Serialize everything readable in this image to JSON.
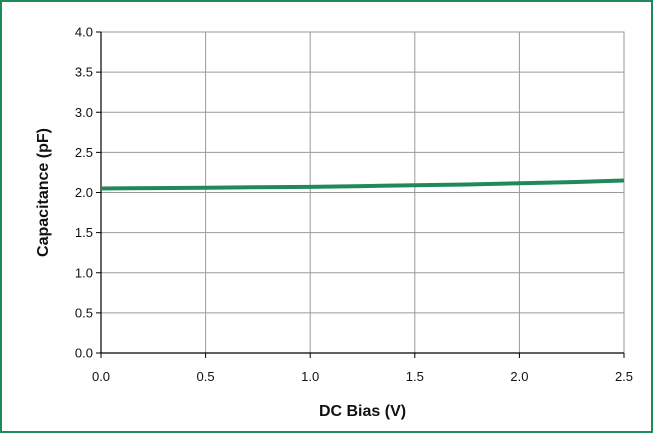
{
  "chart_data": {
    "type": "line",
    "title": "",
    "xlabel": "DC Bias (V)",
    "ylabel": "Capacitance (pF)",
    "xlim": [
      0.0,
      2.5
    ],
    "ylim": [
      0.0,
      4.0
    ],
    "x_ticks": [
      "0.0",
      "0.5",
      "1.0",
      "1.5",
      "2.0",
      "2.5"
    ],
    "y_ticks": [
      "0.0",
      "0.5",
      "1.0",
      "1.5",
      "2.0",
      "2.5",
      "3.0",
      "3.5",
      "4.0"
    ],
    "grid": true,
    "legend": "none",
    "series": [
      {
        "color": "#1e8a5a",
        "x": [
          0.0,
          0.25,
          0.5,
          0.75,
          1.0,
          1.25,
          1.5,
          1.75,
          2.0,
          2.25,
          2.5
        ],
        "y": [
          2.05,
          2.055,
          2.06,
          2.065,
          2.07,
          2.08,
          2.09,
          2.1,
          2.115,
          2.13,
          2.15
        ]
      }
    ]
  },
  "frame_color": "#1e8a5a",
  "grid_color": "#9a9a9a"
}
